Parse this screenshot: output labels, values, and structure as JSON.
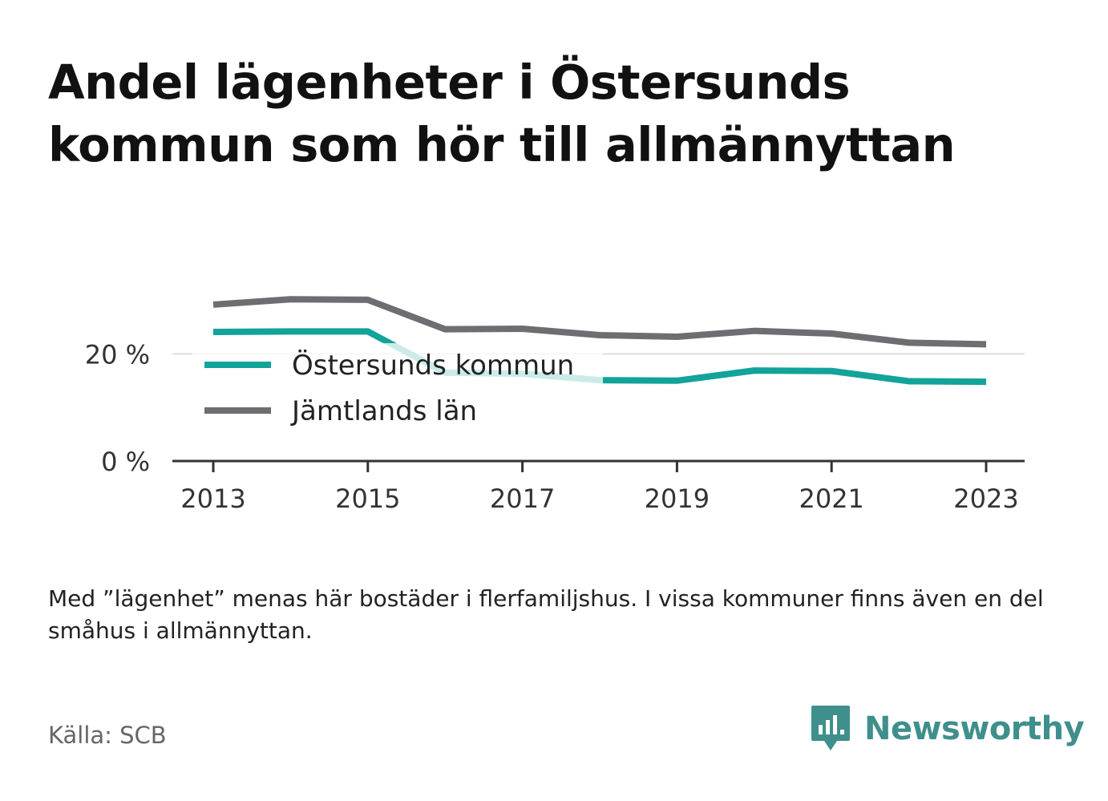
{
  "title": "Andel lägenheter i Östersunds kommun som hör till allmännyttan",
  "note": "Med ”lägenhet” menas här bostäder i flerfamiljshus. I vissa kommuner finns även en del småhus i allmännyttan.",
  "source": "Källa: SCB",
  "brand": {
    "name": "Newsworthy",
    "color": "#3f8f8c",
    "icon": "bar-chart-speech-bubble-icon"
  },
  "chart_data": {
    "type": "line",
    "x": [
      2013,
      2014,
      2015,
      2016,
      2017,
      2018,
      2019,
      2020,
      2021,
      2022,
      2023
    ],
    "xticks": [
      "2013",
      "2015",
      "2017",
      "2019",
      "2021",
      "2023"
    ],
    "yticks": [
      "0 %",
      "20 %"
    ],
    "ylim": [
      0,
      30
    ],
    "grid": "horizontal",
    "legend_position": "center-left",
    "series": [
      {
        "name": "Östersunds kommun",
        "color": "#12a39a",
        "values": [
          24.1,
          24.2,
          24.2,
          16.5,
          16.3,
          15.1,
          15.0,
          16.9,
          16.8,
          14.9,
          14.8
        ]
      },
      {
        "name": "Jämtlands län",
        "color": "#6e6e72",
        "values": [
          29.2,
          30.2,
          30.1,
          24.6,
          24.7,
          23.5,
          23.2,
          24.3,
          23.8,
          22.1,
          21.8
        ]
      }
    ]
  }
}
